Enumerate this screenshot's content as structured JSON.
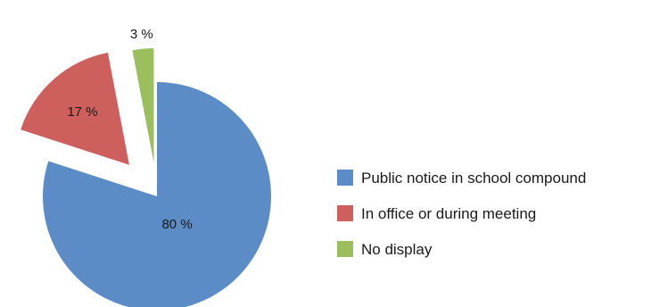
{
  "chart_data": {
    "type": "pie",
    "exploded": true,
    "legend_position": "right",
    "slices": [
      {
        "label": "Public notice in school compound",
        "value": 80,
        "value_label": "80 %",
        "color": "#5b8cc5"
      },
      {
        "label": "In office or during meeting",
        "value": 17,
        "value_label": "17 %",
        "color": "#cd605c"
      },
      {
        "label": "No display",
        "value": 3,
        "value_label": "3 %",
        "color": "#9cbf5e"
      }
    ]
  }
}
